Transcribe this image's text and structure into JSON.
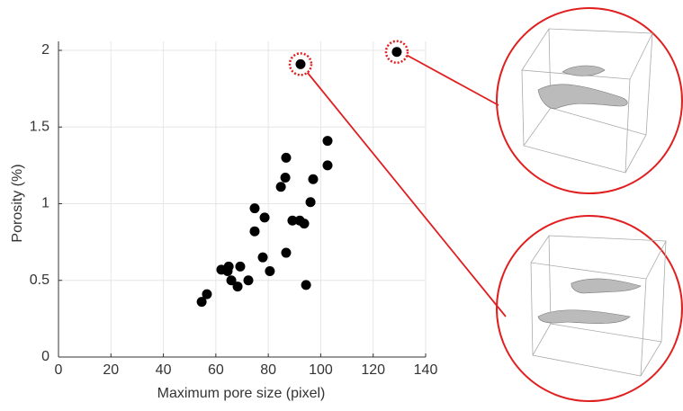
{
  "chart_data": {
    "type": "scatter",
    "xlabel": "Maximum pore size (pixel)",
    "ylabel": "Porosity (%)",
    "x": [
      54.6,
      56.6,
      62.1,
      64.9,
      64.5,
      65.9,
      68.3,
      69.3,
      72.4,
      74.8,
      74.8,
      77.9,
      78.6,
      80.6,
      84.8,
      86.5,
      86.8,
      86.8,
      89.2,
      92.0,
      93.7,
      94.4,
      96.1,
      97.1,
      102.6,
      102.6,
      92.3,
      129.0
    ],
    "values": [
      0.36,
      0.41,
      0.57,
      0.59,
      0.56,
      0.5,
      0.46,
      0.59,
      0.5,
      0.97,
      0.82,
      0.65,
      0.91,
      0.56,
      1.11,
      1.17,
      1.3,
      0.68,
      0.89,
      0.89,
      0.87,
      0.47,
      1.01,
      1.16,
      1.41,
      1.25,
      1.91,
      1.99
    ],
    "highlighted": [
      26,
      27
    ],
    "highlight_color": "#e02020",
    "color": "#000000",
    "xlim": [
      0,
      140
    ],
    "xticks": [
      0,
      20,
      40,
      60,
      80,
      100,
      120,
      140
    ],
    "ylim": [
      0,
      2
    ],
    "yticks": [
      0,
      0.5,
      1,
      1.5,
      2
    ],
    "grid": true
  }
}
